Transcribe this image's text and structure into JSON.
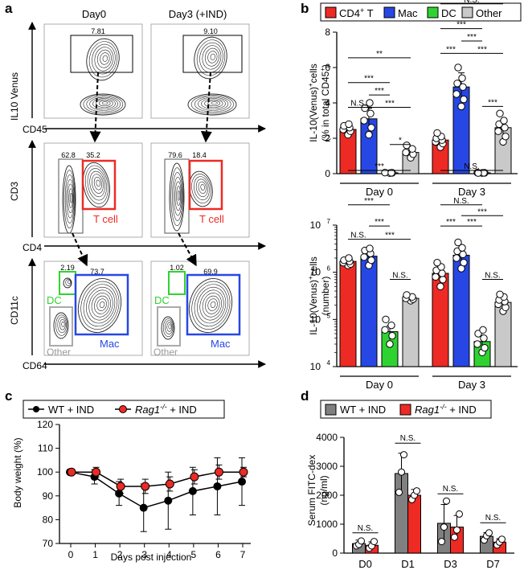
{
  "panel_letters": {
    "a": "a",
    "b": "b",
    "c": "c",
    "d": "d"
  },
  "colors": {
    "cd4": "#ee2a24",
    "mac": "#2747e4",
    "dc": "#2fd331",
    "other": "#c9c9c9",
    "wt": "#808080",
    "rag": "#ee2a24",
    "gate_black": "#000000"
  },
  "panel_a": {
    "col_labels": [
      "Day0",
      "Day3 (+IND)"
    ],
    "row1": {
      "ylabel": "IL10 Venus",
      "xlabel": "CD45",
      "gate_values": [
        "7.81",
        "9.10"
      ]
    },
    "row2": {
      "ylabel": "CD3",
      "xlabel": "CD4",
      "left_values": [
        "62.8",
        "79.6"
      ],
      "right_values": [
        "35.2",
        "18.4"
      ],
      "tcell_label": "T cell"
    },
    "row3": {
      "ylabel": "CD11c",
      "xlabel": "CD64",
      "dc_values": [
        "2.19",
        "1.02"
      ],
      "mac_values": [
        "73.7",
        "69.9"
      ],
      "dc_label": "DC",
      "other_label": "Other",
      "mac_label": "Mac"
    }
  },
  "legend_b": {
    "entries": [
      "CD4",
      "Mac",
      "DC",
      "Other"
    ],
    "cd4_sup": "+",
    "cd4_suffix": " T"
  },
  "chart_data": [
    {
      "id": "b_top",
      "type": "bar",
      "ylabel": "IL-10(Venus)+cells (% in total CD45+)",
      "ylabel_line1": "IL-10(Venus)",
      "ylabel_sup": "+",
      "ylabel_line1_end": "cells",
      "ylabel_line2": "(% in total CD45",
      "ylabel_line2_sup": "+",
      "ylabel_line2_end": ")",
      "ylim": [
        0,
        8
      ],
      "yticks": [
        0,
        2,
        4,
        6,
        8
      ],
      "groups": [
        "Day 0",
        "Day 3"
      ],
      "series": [
        {
          "name": "CD4+ T",
          "values": [
            2.5,
            1.9
          ],
          "errors": [
            0.2,
            0.3
          ],
          "points": [
            [
              2.2,
              2.4,
              2.5,
              2.6,
              2.7,
              2.8
            ],
            [
              1.5,
              1.7,
              1.8,
              1.9,
              2.0,
              2.1,
              2.3
            ]
          ]
        },
        {
          "name": "Mac",
          "values": [
            3.1,
            4.9
          ],
          "errors": [
            0.6,
            0.8
          ],
          "points": [
            [
              2.2,
              2.6,
              3.0,
              3.4,
              3.7,
              4.0
            ],
            [
              3.8,
              4.2,
              4.5,
              4.9,
              5.1,
              5.4,
              6.0
            ]
          ]
        },
        {
          "name": "DC",
          "values": [
            0.05,
            0.05
          ],
          "errors": [
            0.03,
            0.03
          ],
          "points": [
            [
              0.03,
              0.05,
              0.06,
              0.05
            ],
            [
              0.04,
              0.05,
              0.06,
              0.05,
              0.04
            ]
          ]
        },
        {
          "name": "Other",
          "values": [
            1.2,
            2.6
          ],
          "errors": [
            0.3,
            0.4
          ],
          "points": [
            [
              0.9,
              1.1,
              1.2,
              1.4,
              1.6
            ],
            [
              1.8,
              2.1,
              2.4,
              2.6,
              2.8,
              3.0,
              3.4
            ]
          ]
        }
      ],
      "significance": [
        {
          "group": 0,
          "from": 0,
          "to": 1,
          "label": "N.S.",
          "level": 3.75
        },
        {
          "group": 0,
          "from": 0,
          "to": 2,
          "label": "***",
          "level": 5.15
        },
        {
          "group": 0,
          "from": 0,
          "to": 3,
          "label": "**",
          "level": 6.55
        },
        {
          "group": 0,
          "from": 1,
          "to": 2,
          "label": "***",
          "level": 4.45
        },
        {
          "group": 0,
          "from": 1,
          "to": 3,
          "label": "***",
          "level": 3.75
        },
        {
          "group": 0,
          "from": 2,
          "to": 3,
          "label": "*",
          "level": 1.65
        },
        {
          "group": 1,
          "from": 0,
          "to": 1,
          "label": "***",
          "level": 6.8
        },
        {
          "group": 1,
          "from": 0,
          "to": 2,
          "label": "***",
          "level": 8.2
        },
        {
          "group": 1,
          "from": 0,
          "to": 3,
          "label": "N.S.",
          "level": 9.6
        },
        {
          "group": 1,
          "from": 1,
          "to": 2,
          "label": "***",
          "level": 7.5
        },
        {
          "group": 1,
          "from": 1,
          "to": 3,
          "label": "***",
          "level": 6.8
        },
        {
          "group": 1,
          "from": 2,
          "to": 3,
          "label": "***",
          "level": 3.8
        }
      ]
    },
    {
      "id": "b_bottom",
      "type": "bar",
      "scale": "log",
      "ylabel": "IL-10(Venus)+cells (number)",
      "ylabel_line1": "IL-10(Venus)",
      "ylabel_sup": "+",
      "ylabel_line1_end": "cells",
      "ylabel_line2": "(number)",
      "ylim": [
        10000,
        10000000
      ],
      "ytick_base": "10",
      "ytick_exps": [
        "4",
        "5",
        "6",
        "7"
      ],
      "groups": [
        "Day 0",
        "Day 3"
      ],
      "series": [
        {
          "name": "CD4+ T",
          "values": [
            1700000,
            950000
          ],
          "errors": [
            200000,
            350000
          ],
          "points": [
            [
              1400000,
              1500000,
              1600000,
              1700000,
              1800000,
              2000000
            ],
            [
              500000,
              700000,
              800000,
              950000,
              1100000,
              1300000,
              1600000
            ]
          ]
        },
        {
          "name": "Mac",
          "values": [
            2200000,
            2300000
          ],
          "errors": [
            500000,
            900000
          ],
          "points": [
            [
              1400000,
              1800000,
              2100000,
              2500000,
              2900000,
              3200000
            ],
            [
              1200000,
              1600000,
              2000000,
              2400000,
              2800000,
              3300000,
              4300000
            ]
          ]
        },
        {
          "name": "DC",
          "values": [
            55000,
            34000
          ],
          "errors": [
            18000,
            12000
          ],
          "points": [
            [
              30000,
              45000,
              60000,
              75000,
              100000
            ],
            [
              20000,
              25000,
              30000,
              40000,
              50000,
              60000
            ]
          ]
        },
        {
          "name": "Other",
          "values": [
            280000,
            230000
          ],
          "errors": [
            30000,
            50000
          ],
          "points": [
            [
              250000,
              270000,
              280000,
              300000,
              330000
            ],
            [
              150000,
              180000,
              210000,
              240000,
              260000,
              300000,
              340000
            ]
          ]
        }
      ],
      "significance": [
        {
          "group": 0,
          "from": 0,
          "to": 1,
          "label": "N.S.",
          "level": 6.7
        },
        {
          "group": 0,
          "from": 0,
          "to": 2,
          "label": "***",
          "level": 7.43
        },
        {
          "group": 0,
          "from": 0,
          "to": 3,
          "label": "***",
          "level": 8.16
        },
        {
          "group": 0,
          "from": 1,
          "to": 2,
          "label": "***",
          "level": 6.98
        },
        {
          "group": 0,
          "from": 1,
          "to": 3,
          "label": "***",
          "level": 6.7
        },
        {
          "group": 0,
          "from": 2,
          "to": 3,
          "label": "N.S.",
          "level": 5.85
        },
        {
          "group": 1,
          "from": 0,
          "to": 1,
          "label": "***",
          "level": 6.98
        },
        {
          "group": 1,
          "from": 0,
          "to": 2,
          "label": "N.S.",
          "level": 7.43
        },
        {
          "group": 1,
          "from": 0,
          "to": 3,
          "label": "N.S.",
          "level": 8.16
        },
        {
          "group": 1,
          "from": 1,
          "to": 2,
          "label": "***",
          "level": 6.98
        },
        {
          "group": 1,
          "from": 1,
          "to": 3,
          "label": "***",
          "level": 7.2
        },
        {
          "group": 1,
          "from": 2,
          "to": 3,
          "label": "N.S.",
          "level": 5.85
        }
      ]
    },
    {
      "id": "c",
      "type": "line",
      "legend": [
        {
          "name": "WT + IND",
          "text": "WT + IND"
        },
        {
          "name": "Rag1-/- + IND",
          "italic": "Rag1",
          "sup": "-/-",
          "rest": " + IND"
        }
      ],
      "xlabel": "Days post injection",
      "ylabel": "Body weight (%)",
      "x": [
        0,
        1,
        2,
        3,
        4,
        5,
        6,
        7
      ],
      "xlim": [
        0,
        7
      ],
      "ylim": [
        70,
        120
      ],
      "yticks": [
        70,
        80,
        90,
        100,
        110,
        120
      ],
      "series": [
        {
          "name": "WT + IND",
          "values": [
            100,
            98,
            91,
            85,
            88,
            92,
            94,
            96
          ],
          "errors": [
            0,
            3,
            5,
            10,
            12,
            10,
            12,
            10
          ]
        },
        {
          "name": "Rag1-/- + IND",
          "values": [
            100,
            100,
            94,
            94,
            95,
            98,
            100,
            100
          ],
          "errors": [
            0,
            2,
            3,
            3,
            3,
            3,
            3,
            2
          ]
        }
      ]
    },
    {
      "id": "d",
      "type": "bar",
      "legend": [
        {
          "name": "WT + IND",
          "text": "WT + IND"
        },
        {
          "name": "Rag1-/- + IND",
          "italic": "Rag1",
          "sup": "-/-",
          "rest": " + IND"
        }
      ],
      "ylabel_line1": "Serum FITC-dex",
      "ylabel_line2": "(ng/ml)",
      "ylim": [
        0,
        4000
      ],
      "yticks": [
        0,
        1000,
        2000,
        3000,
        4000
      ],
      "categories": [
        "D0",
        "D1",
        "D3",
        "D7"
      ],
      "series": [
        {
          "name": "WT + IND",
          "values": [
            330,
            2750,
            1030,
            580
          ],
          "errors": [
            120,
            700,
            650,
            130
          ],
          "points": [
            [
              250,
              300,
              420
            ],
            [
              2100,
              2800,
              3400
            ],
            [
              400,
              900,
              1800
            ],
            [
              450,
              600,
              700
            ]
          ]
        },
        {
          "name": "Rag1-/- + IND",
          "values": [
            270,
            2000,
            900,
            380
          ],
          "errors": [
            120,
            200,
            400,
            120
          ],
          "points": [
            [
              170,
              250,
              400
            ],
            [
              1850,
              2000,
              2150
            ],
            [
              550,
              800,
              1350
            ],
            [
              280,
              380,
              480
            ]
          ]
        }
      ],
      "significance": [
        {
          "category": 0,
          "label": "N.S.",
          "value": 700
        },
        {
          "category": 1,
          "label": "N.S.",
          "value": 3800
        },
        {
          "category": 2,
          "label": "N.S.",
          "value": 2050
        },
        {
          "category": 3,
          "label": "N.S.",
          "value": 1050
        }
      ]
    }
  ]
}
